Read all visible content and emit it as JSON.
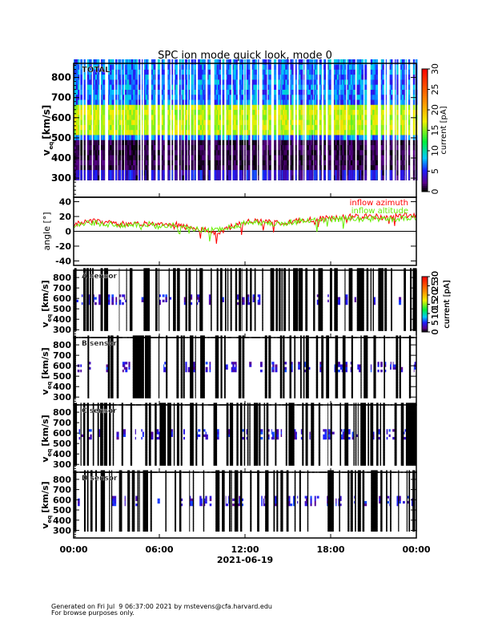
{
  "chart_data": [
    {
      "type": "heatmap",
      "title": "SPC ion mode quick look, mode 0",
      "panel_label": "TOTAL",
      "ylabel": "v_eq [km/s]",
      "ylabel_main": "v",
      "ylabel_sub": "eq",
      "ylabel_unit": "[km/s]",
      "yticks": [
        300,
        400,
        500,
        600,
        700,
        800
      ],
      "ylim": [
        205,
        870
      ],
      "colorbar": {
        "label": "current [pA]",
        "ticks": [
          0,
          5,
          10,
          15,
          20,
          25,
          30
        ],
        "range": [
          0,
          30
        ]
      }
    },
    {
      "type": "line",
      "ylabel": "angle [°]",
      "yticks": [
        -40,
        -20,
        0,
        20,
        40
      ],
      "ylim": [
        -46,
        46
      ],
      "x_hours": [
        0,
        1,
        2,
        3,
        4,
        5,
        6,
        7,
        8,
        9,
        10,
        11,
        12,
        13,
        14,
        15,
        16,
        17,
        18,
        19,
        20,
        21,
        22,
        23,
        24
      ],
      "series": [
        {
          "name": "inflow azimuth",
          "color": "#ff0000",
          "values": [
            10,
            14,
            12,
            10,
            9,
            11,
            8,
            10,
            5,
            3,
            -4,
            6,
            12,
            14,
            11,
            13,
            15,
            17,
            18,
            20,
            19,
            20,
            18,
            21,
            22
          ]
        },
        {
          "name": "inflow altitude",
          "color": "#66ee00",
          "values": [
            9,
            12,
            10,
            9,
            8,
            10,
            7,
            9,
            4,
            2,
            3,
            6,
            11,
            12,
            10,
            12,
            14,
            15,
            16,
            17,
            16,
            17,
            16,
            18,
            19
          ]
        }
      ],
      "legend": "top-right"
    },
    {
      "type": "heatmap",
      "panel_label": "A sensor",
      "ylabel_main": "v",
      "ylabel_sub": "eq",
      "ylabel_unit": "[km/s]",
      "yticks": [
        300,
        400,
        500,
        600,
        700,
        800
      ],
      "ylim": [
        225,
        870
      ],
      "colorbar": {
        "label": "current [pA]",
        "ticks": [
          0,
          5,
          10,
          15,
          20,
          25,
          30
        ],
        "range": [
          0,
          30
        ]
      }
    },
    {
      "type": "heatmap",
      "panel_label": "B sensor",
      "ylabel_main": "v",
      "ylabel_sub": "eq",
      "ylabel_unit": "[km/s]",
      "yticks": [
        300,
        400,
        500,
        600,
        700,
        800
      ],
      "ylim": [
        225,
        870
      ],
      "colorbar": {
        "label": "current [pA]",
        "ticks": [
          0,
          5,
          10,
          15,
          20,
          25,
          30
        ],
        "range": [
          0,
          30
        ]
      }
    },
    {
      "type": "heatmap",
      "panel_label": "C sensor",
      "ylabel_main": "v",
      "ylabel_sub": "eq",
      "ylabel_unit": "[km/s]",
      "yticks": [
        300,
        400,
        500,
        600,
        700,
        800
      ],
      "ylim": [
        225,
        870
      ],
      "colorbar": {
        "label": "current [pA]",
        "ticks": [
          0,
          5,
          10,
          15,
          20,
          25,
          30
        ],
        "range": [
          0,
          30
        ]
      }
    },
    {
      "type": "heatmap",
      "panel_label": "D sensor",
      "ylabel_main": "v",
      "ylabel_sub": "eq",
      "ylabel_unit": "[km/s]",
      "yticks": [
        300,
        400,
        500,
        600,
        700,
        800
      ],
      "ylim": [
        225,
        870
      ],
      "colorbar": {
        "label": "current [pA]",
        "ticks": [
          0,
          5,
          10,
          15,
          20,
          25,
          30
        ],
        "range": [
          0,
          30
        ]
      }
    }
  ],
  "xaxis": {
    "ticks": [
      "00:00",
      "06:00",
      "12:00",
      "18:00",
      "00:00"
    ],
    "date": "2021-06-19",
    "range_hours": [
      0,
      24
    ]
  },
  "footer": {
    "line1": "Generated on Fri Jul  9 06:37:00 2021 by mstevens@cfa.harvard.edu",
    "line2": "For browse purposes only."
  }
}
